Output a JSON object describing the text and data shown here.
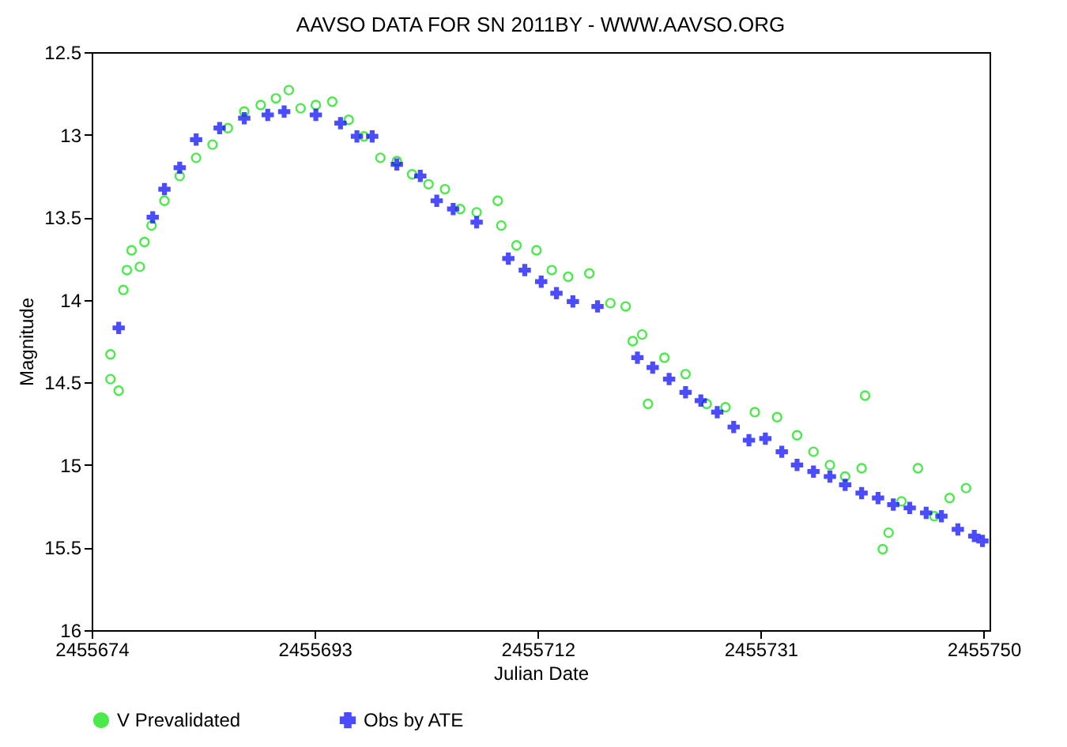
{
  "chart_data": {
    "type": "scatter",
    "title": "AAVSO DATA FOR SN 2011BY - WWW.AAVSO.ORG",
    "xlabel": "Julian Date",
    "ylabel": "Magnitude",
    "xlim": [
      2455674,
      2455750.5
    ],
    "xticks": [
      2455674,
      2455693,
      2455712,
      2455731,
      2455750
    ],
    "ylim": [
      16,
      12.5
    ],
    "yticks": [
      12.5,
      13,
      13.5,
      14,
      14.5,
      15,
      15.5,
      16
    ],
    "grid": false,
    "legend": "bottom",
    "series": [
      {
        "name": "V Prevalidated",
        "color": "#00e000",
        "marker": "circle",
        "x": [
          2455675.6,
          2455675.6,
          2455676.3,
          2455676.7,
          2455677.0,
          2455677.4,
          2455678.1,
          2455678.5,
          2455679.1,
          2455680.2,
          2455681.5,
          2455682.9,
          2455684.3,
          2455685.6,
          2455687.0,
          2455688.4,
          2455689.7,
          2455690.8,
          2455691.8,
          2455693.1,
          2455694.5,
          2455695.9,
          2455697.2,
          2455698.6,
          2455700.0,
          2455701.3,
          2455702.7,
          2455704.1,
          2455705.4,
          2455706.8,
          2455708.6,
          2455708.9,
          2455710.2,
          2455711.9,
          2455713.2,
          2455714.6,
          2455716.4,
          2455718.2,
          2455719.5,
          2455720.1,
          2455720.9,
          2455721.4,
          2455722.8,
          2455724.6,
          2455726.4,
          2455728.0,
          2455730.5,
          2455732.4,
          2455734.1,
          2455735.5,
          2455736.9,
          2455738.2,
          2455739.6,
          2455739.9,
          2455741.4,
          2455741.9,
          2455743.0,
          2455744.4,
          2455745.8,
          2455747.1,
          2455748.5
        ],
        "values": [
          14.33,
          14.48,
          14.55,
          13.94,
          13.82,
          13.7,
          13.8,
          13.65,
          13.55,
          13.4,
          13.25,
          13.14,
          13.06,
          12.96,
          12.86,
          12.82,
          12.78,
          12.73,
          12.84,
          12.82,
          12.8,
          12.91,
          13.01,
          13.14,
          13.16,
          13.24,
          13.3,
          13.33,
          13.45,
          13.47,
          13.4,
          13.55,
          13.67,
          13.7,
          13.82,
          13.86,
          13.84,
          14.02,
          14.04,
          14.25,
          14.21,
          14.63,
          14.35,
          14.45,
          14.63,
          14.65,
          14.68,
          14.71,
          14.82,
          14.92,
          15.0,
          15.07,
          15.02,
          14.58,
          15.51,
          15.41,
          15.22,
          15.02,
          15.31,
          15.2,
          15.14
        ]
      },
      {
        "name": "Obs by ATE",
        "color": "#0000ff",
        "marker": "cross",
        "x": [
          2455676.3,
          2455679.2,
          2455680.2,
          2455681.5,
          2455682.9,
          2455684.9,
          2455687.0,
          2455689.0,
          2455690.4,
          2455693.1,
          2455695.2,
          2455696.6,
          2455697.9,
          2455700.0,
          2455702.0,
          2455703.4,
          2455704.8,
          2455706.8,
          2455709.5,
          2455710.9,
          2455712.3,
          2455713.6,
          2455715.0,
          2455717.1,
          2455720.5,
          2455721.8,
          2455723.2,
          2455724.6,
          2455725.9,
          2455727.3,
          2455728.7,
          2455730.0,
          2455731.4,
          2455732.8,
          2455734.1,
          2455735.5,
          2455736.9,
          2455738.2,
          2455739.6,
          2455741.0,
          2455742.3,
          2455743.7,
          2455745.1,
          2455746.4,
          2455747.8,
          2455749.2,
          2455749.9
        ],
        "values": [
          14.17,
          13.5,
          13.33,
          13.2,
          13.03,
          12.96,
          12.9,
          12.88,
          12.86,
          12.88,
          12.93,
          13.01,
          13.01,
          13.18,
          13.25,
          13.4,
          13.45,
          13.53,
          13.75,
          13.82,
          13.89,
          13.96,
          14.01,
          14.04,
          14.35,
          14.41,
          14.48,
          14.56,
          14.61,
          14.68,
          14.77,
          14.85,
          14.84,
          14.92,
          15.0,
          15.04,
          15.07,
          15.12,
          15.17,
          15.2,
          15.24,
          15.26,
          15.29,
          15.31,
          15.39,
          15.43,
          15.46
        ]
      }
    ]
  }
}
